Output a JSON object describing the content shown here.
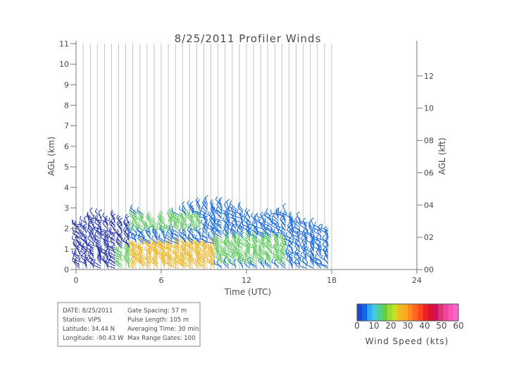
{
  "chart_data": {
    "type": "wind-barb-time-height",
    "title": "8/25/2011 Profiler Winds",
    "xlabel": "Time (UTC)",
    "ylabel_left": "AGL (km)",
    "ylabel_right": "AGL (kft)",
    "xlim": [
      0,
      24
    ],
    "ylim_km": [
      0,
      11
    ],
    "ylim_kft": [
      0,
      14
    ],
    "x_ticks": [
      "0",
      "6",
      "12",
      "18",
      "24"
    ],
    "y_ticks_left": [
      "0",
      "1",
      "2",
      "3",
      "4",
      "5",
      "6",
      "7",
      "8",
      "9",
      "10",
      "11"
    ],
    "y_ticks_right": [
      "00",
      "02",
      "04",
      "06",
      "08",
      "10",
      "12"
    ],
    "gridlines": "vertical every 30 min",
    "barb_profiles": [
      {
        "t": 0.25,
        "top_km": 2.2
      },
      {
        "t": 0.75,
        "top_km": 2.3
      },
      {
        "t": 1.25,
        "top_km": 2.6
      },
      {
        "t": 1.75,
        "top_km": 2.6
      },
      {
        "t": 2.25,
        "top_km": 2.4
      },
      {
        "t": 2.75,
        "top_km": 2.5
      },
      {
        "t": 3.25,
        "top_km": 2.3
      },
      {
        "t": 3.75,
        "top_km": 2.3
      },
      {
        "t": 4.25,
        "top_km": 2.8
      },
      {
        "t": 4.75,
        "top_km": 2.7
      },
      {
        "t": 5.25,
        "top_km": 2.4
      },
      {
        "t": 5.75,
        "top_km": 2.2
      },
      {
        "t": 6.25,
        "top_km": 2.5
      },
      {
        "t": 6.75,
        "top_km": 2.6
      },
      {
        "t": 7.25,
        "top_km": 2.7
      },
      {
        "t": 7.75,
        "top_km": 2.9
      },
      {
        "t": 8.25,
        "top_km": 3.0
      },
      {
        "t": 8.75,
        "top_km": 3.1
      },
      {
        "t": 9.25,
        "top_km": 3.2
      },
      {
        "t": 9.75,
        "top_km": 3.0
      },
      {
        "t": 10.25,
        "top_km": 3.2
      },
      {
        "t": 10.75,
        "top_km": 3.0
      },
      {
        "t": 11.25,
        "top_km": 3.0
      },
      {
        "t": 11.75,
        "top_km": 2.9
      },
      {
        "t": 12.25,
        "top_km": 2.6
      },
      {
        "t": 12.75,
        "top_km": 2.4
      },
      {
        "t": 13.25,
        "top_km": 2.5
      },
      {
        "t": 13.75,
        "top_km": 2.6
      },
      {
        "t": 14.25,
        "top_km": 2.7
      },
      {
        "t": 14.75,
        "top_km": 2.8
      },
      {
        "t": 15.25,
        "top_km": 2.5
      },
      {
        "t": 15.75,
        "top_km": 2.4
      },
      {
        "t": 16.25,
        "top_km": 2.3
      },
      {
        "t": 16.75,
        "top_km": 2.1
      },
      {
        "t": 17.25,
        "top_km": 2.0
      },
      {
        "t": 17.75,
        "top_km": 1.9
      }
    ],
    "speed_regions_kts": [
      {
        "t0": 0,
        "t1": 4,
        "h0": 0,
        "h1": 3,
        "speed": 5
      },
      {
        "t0": 3,
        "t1": 6,
        "h0": 0,
        "h1": 1,
        "speed": 18
      },
      {
        "t0": 4,
        "t1": 10,
        "h0": 0,
        "h1": 1.2,
        "speed": 28
      },
      {
        "t0": 10,
        "t1": 15,
        "h0": 0.2,
        "h1": 1.5,
        "speed": 20
      },
      {
        "t0": 4,
        "t1": 9,
        "h0": 1.8,
        "h1": 2.6,
        "speed": 16
      },
      {
        "t0": 9,
        "t1": 18,
        "h0": 1.8,
        "h1": 3.2,
        "speed": 10
      },
      {
        "t0": 15,
        "t1": 18,
        "h0": 0,
        "h1": 1.8,
        "speed": 7
      }
    ],
    "colorbar": {
      "label": "Wind Speed (kts)",
      "min": 0,
      "max": 60,
      "ticks": [
        "0",
        "10",
        "20",
        "30",
        "40",
        "50",
        "60"
      ]
    }
  },
  "info_box": {
    "left": [
      "DATE:  8/25/2011",
      "Station: VIPS",
      "Latitude: 34.44 N",
      "Longitude: -90.43 W"
    ],
    "right": [
      "Gate Spacing: 57 m",
      "Pulse Length: 105 m",
      "Averaging Time: 30 min",
      "Max Range Gates: 100"
    ]
  }
}
